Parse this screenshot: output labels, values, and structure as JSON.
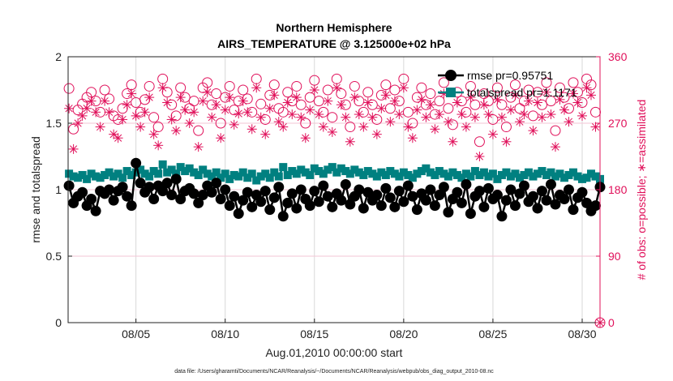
{
  "chart_data": {
    "type": "line",
    "title": "Northern Hemisphere",
    "subtitle": "AIRS_TEMPERATURE @ 3.125000e+02 hPa",
    "xlabel": "Aug.01,2010 00:00:00 start",
    "ylabel": "rmse and totalspread",
    "y2label": "# of obs: o=possible; ∗=assimilated",
    "footer": "data file: /Users/gharamti/Documents/NCAR/Reanalysis/~/Documents/NCAR/Reanalysis/webpub/obs_diag_output_2010-08.nc",
    "xlim": [
      0.2,
      30.0
    ],
    "ylim": [
      0,
      2
    ],
    "y2lim": [
      0,
      360
    ],
    "x_ticks": [
      {
        "day": 4,
        "label": "08/05"
      },
      {
        "day": 9,
        "label": "08/10"
      },
      {
        "day": 14,
        "label": "08/15"
      },
      {
        "day": 19,
        "label": "08/20"
      },
      {
        "day": 24,
        "label": "08/25"
      },
      {
        "day": 29,
        "label": "08/30"
      }
    ],
    "y_ticks": [
      "0",
      "0.5",
      "1",
      "1.5",
      "2"
    ],
    "y2_ticks": [
      "0",
      "90",
      "180",
      "270",
      "360"
    ],
    "x_start_day": 0.25,
    "x_step_day": 0.25,
    "legend_position": "top-right",
    "series": [
      {
        "name": "rmse pr=0.95751",
        "color": "#000000",
        "marker": "circle",
        "axis": "left",
        "values": [
          1.03,
          0.9,
          0.95,
          0.98,
          0.88,
          0.93,
          0.84,
          0.99,
          0.97,
          1.0,
          0.92,
          0.99,
          1.02,
          0.95,
          0.88,
          1.2,
          1.05,
          0.98,
          1.02,
          0.93,
          1.03,
          0.99,
          1.05,
          0.96,
          1.08,
          0.93,
          0.99,
          1.01,
          0.97,
          0.9,
          0.96,
          1.03,
          0.98,
          1.05,
          0.93,
          1.0,
          0.88,
          0.95,
          0.82,
          0.92,
          0.98,
          0.87,
          0.96,
          0.91,
          0.99,
          0.85,
          0.94,
          1.02,
          0.8,
          0.9,
          0.97,
          0.86,
          1.0,
          0.93,
          0.88,
          0.99,
          0.91,
          1.03,
          0.95,
          0.87,
          0.97,
          0.92,
          1.04,
          0.89,
          0.95,
          1.0,
          0.86,
          0.98,
          0.92,
          0.96,
          0.88,
          1.01,
          0.94,
          0.87,
          0.99,
          0.91,
          1.03,
          0.95,
          0.85,
          0.97,
          0.92,
          1.0,
          0.88,
          0.96,
          1.02,
          0.83,
          0.93,
          0.98,
          0.9,
          1.04,
          0.82,
          0.95,
          0.99,
          0.87,
          1.01,
          0.93,
          0.96,
          0.8,
          0.92,
          1.0,
          0.88,
          0.97,
          1.03,
          0.91,
          0.95,
          0.86,
          0.99,
          0.92,
          1.04,
          0.89,
          0.96,
          0.93,
          1.0,
          0.85,
          0.94,
          0.98,
          0.9,
          0.84,
          0.88,
          1.02
        ]
      },
      {
        "name": "totalspread pr=1.1171",
        "color": "#008080",
        "marker": "square",
        "axis": "left",
        "values": [
          1.12,
          1.1,
          1.09,
          1.11,
          1.08,
          1.12,
          1.1,
          1.09,
          1.11,
          1.13,
          1.1,
          1.12,
          1.09,
          1.14,
          1.11,
          1.13,
          1.15,
          1.12,
          1.1,
          1.14,
          1.12,
          1.19,
          1.13,
          1.15,
          1.12,
          1.17,
          1.14,
          1.16,
          1.13,
          1.11,
          1.15,
          1.12,
          1.1,
          1.13,
          1.09,
          1.12,
          1.08,
          1.11,
          1.1,
          1.13,
          1.09,
          1.12,
          1.07,
          1.1,
          1.12,
          1.09,
          1.13,
          1.1,
          1.17,
          1.11,
          1.14,
          1.12,
          1.15,
          1.13,
          1.11,
          1.16,
          1.14,
          1.12,
          1.15,
          1.17,
          1.13,
          1.16,
          1.14,
          1.12,
          1.15,
          1.13,
          1.11,
          1.14,
          1.12,
          1.1,
          1.13,
          1.11,
          1.14,
          1.12,
          1.1,
          1.13,
          1.11,
          1.09,
          1.12,
          1.14,
          1.16,
          1.13,
          1.11,
          1.14,
          1.12,
          1.1,
          1.13,
          1.11,
          1.09,
          1.12,
          1.1,
          1.14,
          1.11,
          1.13,
          1.1,
          1.12,
          1.08,
          1.11,
          1.13,
          1.1,
          1.12,
          1.09,
          1.11,
          1.13,
          1.1,
          1.12,
          1.14,
          1.11,
          1.13,
          1.1,
          1.12,
          1.09,
          1.11,
          1.13,
          1.1,
          1.08,
          1.09,
          1.12,
          1.1,
          1.08
        ]
      },
      {
        "name": "possible",
        "color": "#e0105a",
        "marker": "open-circle",
        "axis": "right",
        "values": [
          317,
          262,
          288,
          296,
          305,
          312,
          300,
          285,
          315,
          303,
          280,
          275,
          290,
          310,
          322,
          298,
          285,
          302,
          320,
          278,
          265,
          330,
          312,
          295,
          280,
          318,
          305,
          290,
          300,
          260,
          318,
          325,
          295,
          310,
          270,
          305,
          320,
          288,
          300,
          315,
          303,
          285,
          330,
          296,
          275,
          308,
          322,
          290,
          285,
          312,
          300,
          320,
          295,
          270,
          305,
          328,
          300,
          285,
          315,
          278,
          330,
          310,
          295,
          265,
          320,
          300,
          285,
          312,
          295,
          275,
          308,
          322,
          290,
          315,
          300,
          330,
          285,
          270,
          305,
          318,
          295,
          310,
          282,
          300,
          325,
          290,
          268,
          312,
          300,
          285,
          320,
          295,
          245,
          310,
          300,
          275,
          318,
          295,
          265,
          305,
          322,
          290,
          300,
          315,
          280,
          312,
          295,
          325,
          300,
          260,
          318,
          305,
          290,
          325,
          312,
          298,
          330,
          322,
          285,
          0
        ]
      },
      {
        "name": "assimilated",
        "color": "#e0105a",
        "marker": "asterisk",
        "axis": "right",
        "values": [
          290,
          235,
          270,
          280,
          290,
          300,
          285,
          265,
          300,
          285,
          255,
          250,
          275,
          295,
          310,
          280,
          265,
          285,
          305,
          255,
          240,
          318,
          298,
          275,
          260,
          305,
          288,
          270,
          285,
          238,
          300,
          312,
          278,
          295,
          250,
          288,
          305,
          268,
          283,
          300,
          285,
          262,
          318,
          278,
          255,
          290,
          308,
          272,
          265,
          298,
          282,
          305,
          278,
          250,
          288,
          315,
          282,
          265,
          300,
          258,
          318,
          295,
          278,
          245,
          305,
          282,
          265,
          298,
          278,
          255,
          290,
          308,
          272,
          300,
          282,
          318,
          265,
          250,
          288,
          302,
          278,
          295,
          262,
          282,
          310,
          272,
          245,
          298,
          282,
          265,
          305,
          278,
          225,
          295,
          282,
          255,
          302,
          278,
          245,
          288,
          308,
          272,
          282,
          300,
          260,
          298,
          278,
          312,
          282,
          238,
          302,
          288,
          272,
          310,
          298,
          280,
          318,
          308,
          265,
          0
        ]
      }
    ]
  }
}
